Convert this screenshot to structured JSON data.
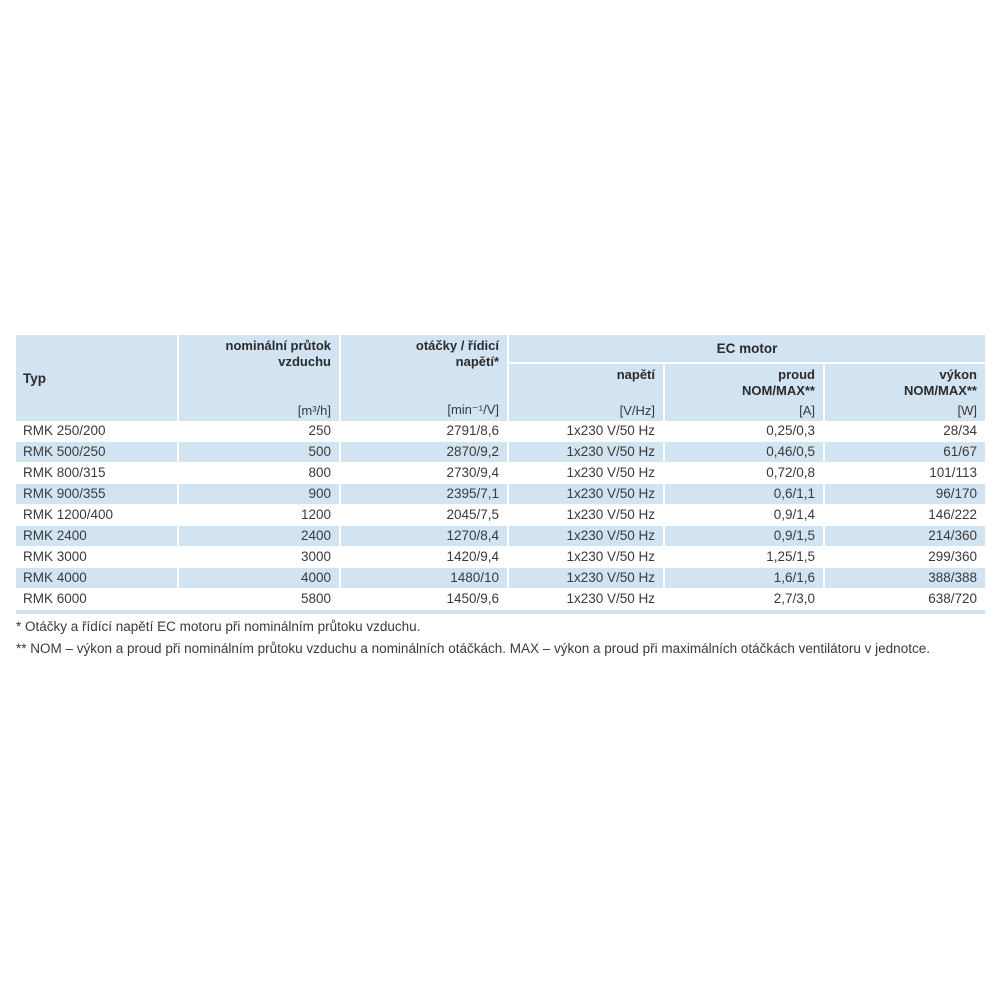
{
  "colors": {
    "band": "#d2e4f2",
    "text": "#3a3a3a"
  },
  "table": {
    "header": {
      "typ": "Typ",
      "flow_label": "nominální průtok\nvzduchu",
      "flow_unit": "[m³/h]",
      "speed_label": "otáčky / řídicí\nnapětí*",
      "speed_unit": "[min⁻¹/V]",
      "ec_motor": "EC motor",
      "voltage_label": "napětí",
      "voltage_unit": "[V/Hz]",
      "current_label": "proud\nNOM/MAX**",
      "current_unit": "[A]",
      "power_label": "výkon\nNOM/MAX**",
      "power_unit": "[W]"
    },
    "rows": [
      [
        "RMK 250/200",
        "250",
        "2791/8,6",
        "1x230 V/50 Hz",
        "0,25/0,3",
        "28/34"
      ],
      [
        "RMK 500/250",
        "500",
        "2870/9,2",
        "1x230 V/50 Hz",
        "0,46/0,5",
        "61/67"
      ],
      [
        "RMK 800/315",
        "800",
        "2730/9,4",
        "1x230 V/50 Hz",
        "0,72/0,8",
        "101/113"
      ],
      [
        "RMK 900/355",
        "900",
        "2395/7,1",
        "1x230 V/50 Hz",
        "0,6/1,1",
        "96/170"
      ],
      [
        "RMK 1200/400",
        "1200",
        "2045/7,5",
        "1x230 V/50 Hz",
        "0,9/1,4",
        "146/222"
      ],
      [
        "RMK 2400",
        "2400",
        "1270/8,4",
        "1x230 V/50 Hz",
        "0,9/1,5",
        "214/360"
      ],
      [
        "RMK 3000",
        "3000",
        "1420/9,4",
        "1x230 V/50 Hz",
        "1,25/1,5",
        "299/360"
      ],
      [
        "RMK 4000",
        "4000",
        "1480/10",
        "1x230 V/50 Hz",
        "1,6/1,6",
        "388/388"
      ],
      [
        "RMK 6000",
        "5800",
        "1450/9,6",
        "1x230 V/50 Hz",
        "2,7/3,0",
        "638/720"
      ]
    ]
  },
  "footnotes": {
    "note1": "* Otáčky a řídící napětí EC motoru při nominálním průtoku vzduchu.",
    "note2": "** NOM – výkon a proud při nominálním průtoku vzduchu a nominálních otáčkách. MAX – výkon a proud při maximálních otáčkách ventilátoru v jednotce."
  }
}
